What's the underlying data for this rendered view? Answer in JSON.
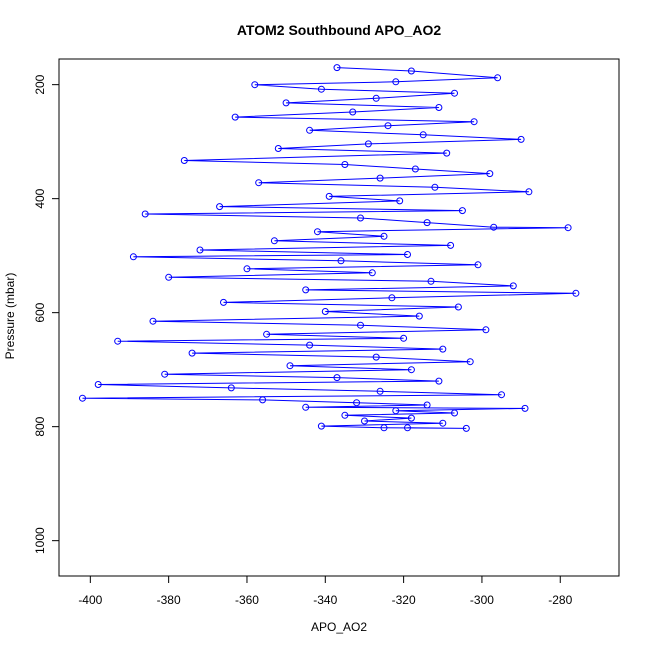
{
  "chart_data": {
    "type": "scatter",
    "title": "ATOM2 Southbound APO_AO2",
    "xlabel": "APO_AO2",
    "ylabel": "Pressure (mbar)",
    "xlim": [
      -408,
      -265
    ],
    "ylim": [
      1062,
      155
    ],
    "y_reversed": true,
    "x_ticks": [
      -400,
      -380,
      -360,
      -340,
      -320,
      -300,
      -280
    ],
    "y_ticks": [
      200,
      400,
      600,
      800,
      1000
    ],
    "marker": "open-circle",
    "connected": true,
    "grid": false,
    "color": "#0000ff",
    "series": [
      {
        "points": [
          [
            -337,
            170
          ],
          [
            -318,
            176
          ],
          [
            -296,
            188
          ],
          [
            -322,
            195
          ],
          [
            -358,
            200
          ],
          [
            -341,
            208
          ],
          [
            -307,
            215
          ],
          [
            -327,
            224
          ],
          [
            -350,
            232
          ],
          [
            -311,
            240
          ],
          [
            -333,
            248
          ],
          [
            -363,
            257
          ],
          [
            -302,
            265
          ],
          [
            -324,
            272
          ],
          [
            -344,
            280
          ],
          [
            -315,
            288
          ],
          [
            -290,
            296
          ],
          [
            -329,
            304
          ],
          [
            -352,
            312
          ],
          [
            -309,
            320
          ],
          [
            -376,
            333
          ],
          [
            -335,
            340
          ],
          [
            -317,
            348
          ],
          [
            -298,
            356
          ],
          [
            -326,
            364
          ],
          [
            -357,
            372
          ],
          [
            -312,
            380
          ],
          [
            -288,
            388
          ],
          [
            -339,
            396
          ],
          [
            -321,
            404
          ],
          [
            -367,
            414
          ],
          [
            -305,
            421
          ],
          [
            -386,
            427
          ],
          [
            -331,
            434
          ],
          [
            -314,
            442
          ],
          [
            -297,
            450
          ],
          [
            -278,
            451
          ],
          [
            -342,
            458
          ],
          [
            -325,
            466
          ],
          [
            -353,
            474
          ],
          [
            -308,
            482
          ],
          [
            -372,
            490
          ],
          [
            -319,
            498
          ],
          [
            -389,
            502
          ],
          [
            -336,
            509
          ],
          [
            -301,
            516
          ],
          [
            -360,
            523
          ],
          [
            -328,
            530
          ],
          [
            -380,
            538
          ],
          [
            -313,
            545
          ],
          [
            -292,
            553
          ],
          [
            -345,
            560
          ],
          [
            -276,
            566
          ],
          [
            -323,
            574
          ],
          [
            -366,
            582
          ],
          [
            -306,
            590
          ],
          [
            -340,
            598
          ],
          [
            -316,
            606
          ],
          [
            -384,
            615
          ],
          [
            -331,
            622
          ],
          [
            -299,
            630
          ],
          [
            -355,
            638
          ],
          [
            -320,
            645
          ],
          [
            -393,
            650
          ],
          [
            -344,
            657
          ],
          [
            -310,
            664
          ],
          [
            -374,
            671
          ],
          [
            -327,
            678
          ],
          [
            -303,
            686
          ],
          [
            -349,
            693
          ],
          [
            -318,
            700
          ],
          [
            -381,
            708
          ],
          [
            -337,
            714
          ],
          [
            -311,
            720
          ],
          [
            -398,
            726
          ],
          [
            -364,
            732
          ],
          [
            -326,
            738
          ],
          [
            -295,
            744
          ],
          [
            -402,
            750
          ],
          [
            -356,
            753
          ],
          [
            -332,
            758
          ],
          [
            -314,
            762
          ],
          [
            -345,
            766
          ],
          [
            -289,
            768
          ],
          [
            -322,
            772
          ],
          [
            -307,
            776
          ],
          [
            -335,
            780
          ],
          [
            -318,
            785
          ],
          [
            -330,
            790
          ],
          [
            -310,
            794
          ],
          [
            -341,
            799
          ],
          [
            -325,
            802
          ],
          [
            -304,
            803
          ],
          [
            -319,
            802
          ]
        ]
      }
    ]
  }
}
